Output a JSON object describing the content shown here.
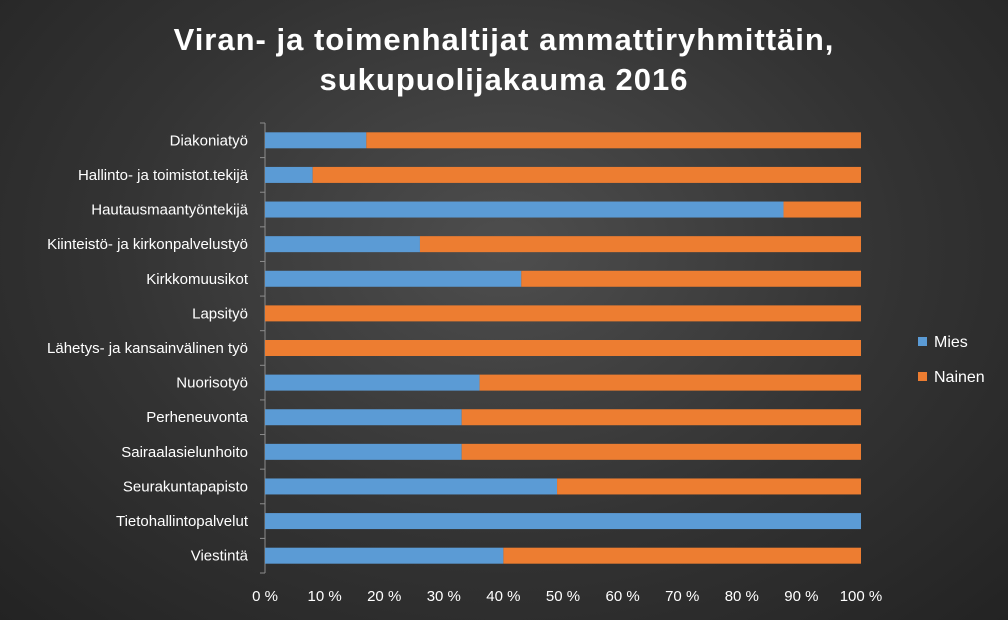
{
  "chart_data": {
    "type": "bar",
    "orientation": "horizontal",
    "stacked": "percent",
    "title": "Viran- ja toimenhaltijat ammattiryhmittäin, sukupuolijakauma 2016",
    "title_lines": [
      "Viran- ja toimenhaltijat ammattiryhmittäin,",
      "sukupuolijakauma 2016"
    ],
    "categories": [
      "Diakoniatyö",
      "Hallinto- ja toimistot.tekijä",
      "Hautausmaantyöntekijä",
      "Kiinteistö- ja kirkonpalvelustyö",
      "Kirkkomuusikot",
      "Lapsityö",
      "Lähetys- ja kansainvälinen työ",
      "Nuorisotyö",
      "Perheneuvonta",
      "Sairaalasielunhoito",
      "Seurakuntapapisto",
      "Tietohallintopalvelut",
      "Viestintä"
    ],
    "series": [
      {
        "name": "Mies",
        "color": "#5b9bd5",
        "values": [
          17,
          8,
          87,
          26,
          43,
          0,
          0,
          36,
          33,
          33,
          49,
          100,
          40
        ]
      },
      {
        "name": "Nainen",
        "color": "#ed7d31",
        "values": [
          83,
          92,
          13,
          74,
          57,
          100,
          100,
          64,
          67,
          67,
          51,
          0,
          60
        ]
      }
    ],
    "x_ticks": [
      "0 %",
      "10 %",
      "20 %",
      "30 %",
      "40 %",
      "50 %",
      "60 %",
      "70 %",
      "80 %",
      "90 %",
      "100 %"
    ],
    "xlim": [
      0,
      100
    ],
    "legend_position": "right",
    "grid": false
  }
}
